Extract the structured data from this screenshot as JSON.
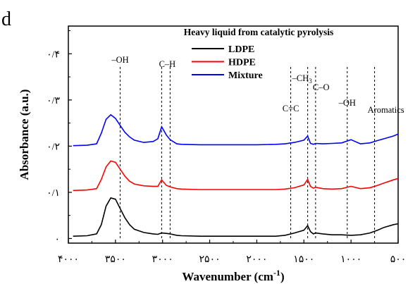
{
  "panel_label": "d",
  "chart_data": {
    "type": "line",
    "title": "Heavy liquid from catalytic pyrolysis",
    "xlabel": "Wavenumber (cm⁻¹)",
    "ylabel": "Absorbance (a.u.)",
    "xlim": [
      4000,
      500
    ],
    "ylim": [
      -0.01,
      0.46
    ],
    "x_reversed": true,
    "x_ticks": [
      4000,
      3500,
      3000,
      2500,
      2000,
      1500,
      1000,
      500
    ],
    "x_tick_labels": [
      "۴۰۰۰",
      "۳۵۰۰",
      "۳۰۰۰",
      "۲۵۰۰",
      "۲۰۰۰",
      "۱۵۰۰",
      "۱۰۰۰",
      "۵۰۰"
    ],
    "y_ticks": [
      0,
      0.1,
      0.2,
      0.3,
      0.4
    ],
    "y_tick_labels": [
      "۰",
      "۰/۱",
      "۰/۲",
      "۰/۳",
      "۰/۴"
    ],
    "grid": false,
    "legend_position": "top-center",
    "series": [
      {
        "name": "LDPE",
        "color": "#000000",
        "x": [
          3950,
          3800,
          3700,
          3650,
          3600,
          3550,
          3500,
          3450,
          3400,
          3350,
          3300,
          3200,
          3100,
          3050,
          3010,
          2960,
          2920,
          2850,
          2800,
          2600,
          2400,
          2200,
          2000,
          1800,
          1700,
          1600,
          1500,
          1460,
          1430,
          1400,
          1376,
          1300,
          1200,
          1100,
          1000,
          900,
          800,
          720,
          650,
          550,
          500
        ],
        "y": [
          0.005,
          0.006,
          0.01,
          0.03,
          0.07,
          0.088,
          0.085,
          0.065,
          0.045,
          0.03,
          0.02,
          0.013,
          0.01,
          0.009,
          0.012,
          0.011,
          0.01,
          0.007,
          0.006,
          0.005,
          0.005,
          0.005,
          0.005,
          0.005,
          0.007,
          0.012,
          0.018,
          0.028,
          0.015,
          0.01,
          0.012,
          0.01,
          0.008,
          0.008,
          0.007,
          0.008,
          0.012,
          0.018,
          0.024,
          0.03,
          0.032
        ]
      },
      {
        "name": "HDPE",
        "color": "#ff0000",
        "x": [
          3950,
          3800,
          3700,
          3650,
          3600,
          3550,
          3500,
          3450,
          3400,
          3350,
          3300,
          3200,
          3100,
          3050,
          3010,
          2960,
          2920,
          2850,
          2800,
          2600,
          2400,
          2200,
          2000,
          1800,
          1700,
          1600,
          1500,
          1460,
          1430,
          1400,
          1376,
          1300,
          1200,
          1100,
          1000,
          900,
          800,
          720,
          650,
          550,
          500
        ],
        "y": [
          0.104,
          0.105,
          0.108,
          0.128,
          0.155,
          0.168,
          0.165,
          0.15,
          0.135,
          0.124,
          0.118,
          0.114,
          0.113,
          0.113,
          0.127,
          0.115,
          0.112,
          0.108,
          0.107,
          0.106,
          0.106,
          0.106,
          0.106,
          0.106,
          0.107,
          0.11,
          0.116,
          0.128,
          0.113,
          0.109,
          0.111,
          0.108,
          0.107,
          0.108,
          0.113,
          0.108,
          0.11,
          0.115,
          0.12,
          0.127,
          0.13
        ]
      },
      {
        "name": "Mixture",
        "color": "#0000ff",
        "x": [
          3950,
          3800,
          3700,
          3650,
          3600,
          3550,
          3500,
          3450,
          3400,
          3350,
          3300,
          3200,
          3100,
          3050,
          3010,
          2960,
          2920,
          2850,
          2800,
          2600,
          2400,
          2200,
          2000,
          1800,
          1700,
          1600,
          1500,
          1460,
          1430,
          1400,
          1376,
          1300,
          1200,
          1100,
          1000,
          900,
          800,
          720,
          650,
          550,
          500
        ],
        "y": [
          0.201,
          0.202,
          0.205,
          0.228,
          0.258,
          0.268,
          0.26,
          0.245,
          0.23,
          0.22,
          0.213,
          0.208,
          0.21,
          0.216,
          0.242,
          0.224,
          0.214,
          0.205,
          0.204,
          0.203,
          0.203,
          0.203,
          0.203,
          0.204,
          0.205,
          0.208,
          0.213,
          0.222,
          0.206,
          0.204,
          0.206,
          0.205,
          0.206,
          0.207,
          0.214,
          0.205,
          0.207,
          0.212,
          0.216,
          0.222,
          0.226
        ]
      }
    ],
    "annotations": [
      {
        "text": "–OH",
        "x": 3450,
        "sub": ""
      },
      {
        "text": "C–H",
        "x": 2950,
        "sub": ""
      },
      {
        "text": "C=C",
        "x": 1640,
        "sub": ""
      },
      {
        "text": "–CH",
        "x": 1460,
        "sub": "3"
      },
      {
        "text": "C–O",
        "x": 1376,
        "sub": ""
      },
      {
        "text": "–OH",
        "x": 1040,
        "sub": ""
      },
      {
        "text": "Aromatics",
        "x": 750,
        "sub": ""
      }
    ],
    "vlines": [
      3450,
      3010,
      2920,
      1640,
      1460,
      1376,
      1040,
      750
    ]
  }
}
